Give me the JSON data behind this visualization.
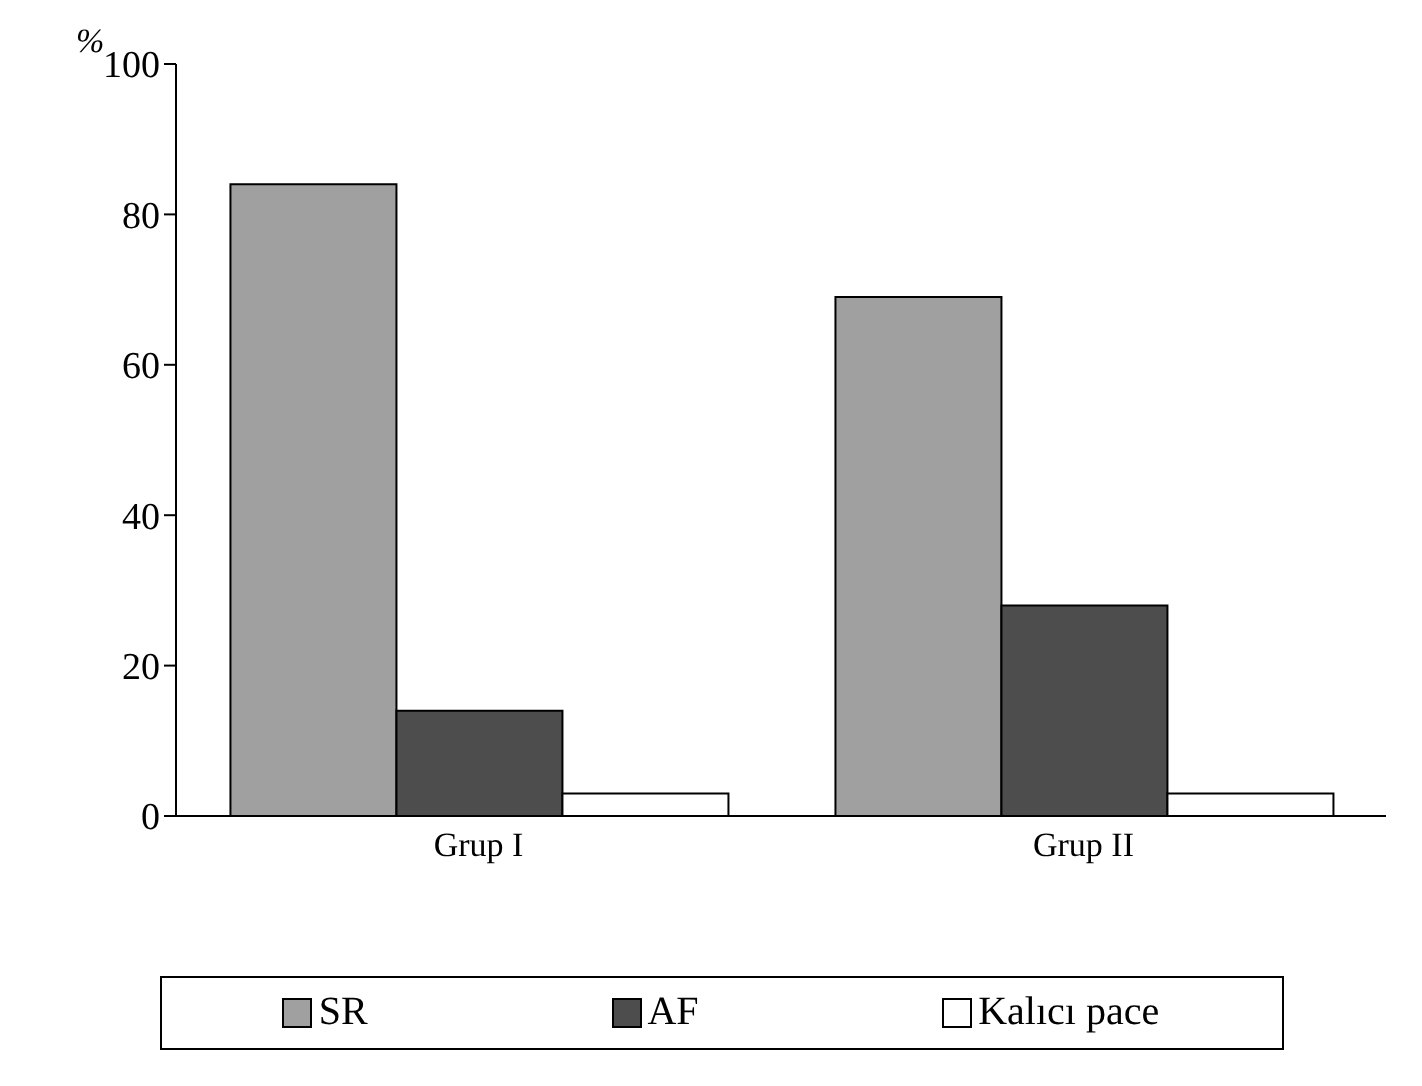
{
  "chart_data": {
    "type": "bar",
    "ylabel": "%",
    "categories": [
      "Grup I",
      "Grup II"
    ],
    "series": [
      {
        "name": "SR",
        "color": "#a0a0a0",
        "values": [
          84,
          69
        ]
      },
      {
        "name": "AF",
        "color": "#4d4d4d",
        "values": [
          14,
          28
        ]
      },
      {
        "name": "Kalıcı pace",
        "color": "#ffffff",
        "values": [
          3,
          3
        ]
      }
    ],
    "ylim": [
      0,
      100
    ],
    "yticks": [
      0,
      20,
      40,
      60,
      80,
      100
    ],
    "grid": false,
    "legend": "bottom"
  }
}
